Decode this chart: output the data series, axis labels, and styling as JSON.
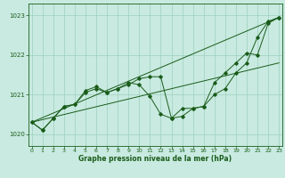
{
  "x": [
    0,
    1,
    2,
    3,
    4,
    5,
    6,
    7,
    8,
    9,
    10,
    11,
    12,
    13,
    14,
    15,
    16,
    17,
    18,
    19,
    20,
    21,
    22,
    23
  ],
  "line1": [
    1020.3,
    1020.1,
    1020.4,
    1020.7,
    1020.75,
    1021.1,
    1021.2,
    1021.05,
    1021.15,
    1021.3,
    1021.25,
    1020.95,
    1020.5,
    1020.4,
    1020.65,
    1020.65,
    1020.7,
    1021.0,
    1021.15,
    1021.55,
    1021.8,
    1022.45,
    1022.85,
    1022.95
  ],
  "line2": [
    1020.3,
    1020.1,
    1020.4,
    1020.7,
    1020.75,
    1021.05,
    1021.15,
    1021.05,
    1021.15,
    1021.25,
    1021.4,
    1021.45,
    1021.45,
    1020.4,
    1020.45,
    1020.65,
    1020.7,
    1021.3,
    1021.55,
    1021.8,
    1022.05,
    1022.0,
    1022.8,
    1022.95
  ],
  "line3_x": [
    0,
    23
  ],
  "line3_y": [
    1020.3,
    1022.95
  ],
  "line4_x": [
    0,
    23
  ],
  "line4_y": [
    1020.3,
    1021.8
  ],
  "bg_color": "#c8eae0",
  "line_color": "#1a5c1a",
  "grid_color": "#9ecfbe",
  "xlabel": "Graphe pression niveau de la mer (hPa)",
  "ylim": [
    1019.7,
    1023.3
  ],
  "xlim": [
    -0.3,
    23.3
  ],
  "yticks": [
    1020,
    1021,
    1022,
    1023
  ],
  "xticks": [
    0,
    1,
    2,
    3,
    4,
    5,
    6,
    7,
    8,
    9,
    10,
    11,
    12,
    13,
    14,
    15,
    16,
    17,
    18,
    19,
    20,
    21,
    22,
    23
  ]
}
